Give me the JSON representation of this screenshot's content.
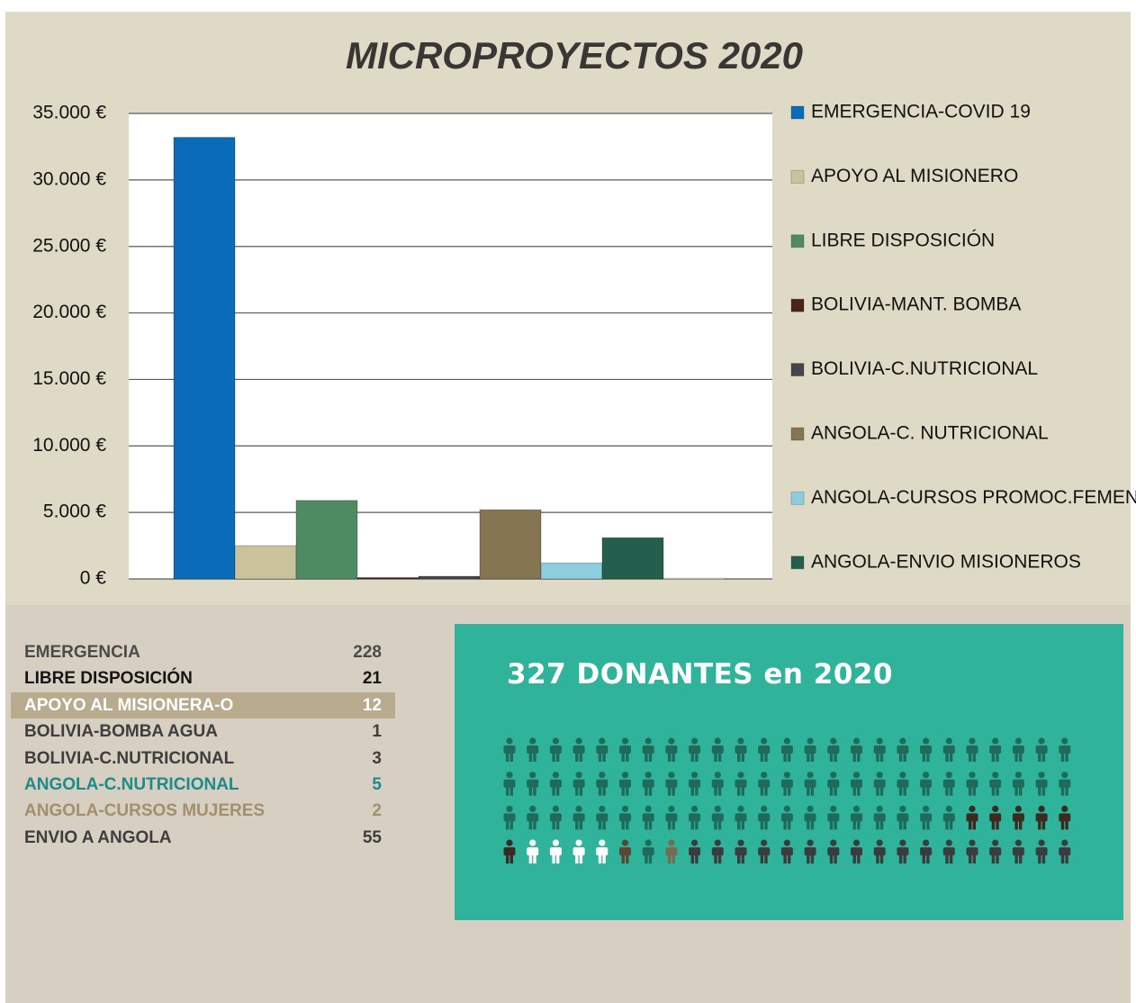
{
  "chart_data": {
    "type": "bar",
    "title": "MICROPROYECTOS 2020",
    "series": [
      {
        "name": "EMERGENCIA-COVID 19",
        "color": "#0a6bb8",
        "values": [
          33200
        ]
      },
      {
        "name": "APOYO AL MISIONERO",
        "color": "#c9c29a",
        "values": [
          2500
        ]
      },
      {
        "name": "LIBRE DISPOSICIÓN",
        "color": "#4e8a62",
        "values": [
          5900
        ]
      },
      {
        "name": "BOLIVIA-MANT. BOMBA",
        "color": "#4a2418",
        "values": [
          100
        ]
      },
      {
        "name": "BOLIVIA-C.NUTRICIONAL",
        "color": "#45454d",
        "values": [
          200
        ]
      },
      {
        "name": "ANGOLA-C. NUTRICIONAL",
        "color": "#857652",
        "values": [
          5200
        ]
      },
      {
        "name": "ANGOLA-CURSOS PROMOC.FEMENINA",
        "color": "#8ccde0",
        "values": [
          1200
        ]
      },
      {
        "name": "ANGOLA-ENVIO MISIONEROS",
        "color": "#245e4c",
        "values": [
          3100
        ]
      },
      {
        "name": null,
        "color": "#ffffff",
        "values": [
          50
        ]
      }
    ],
    "ylim": [
      0,
      35000
    ],
    "yticks": [
      {
        "value": 0,
        "label": "0 €"
      },
      {
        "value": 5000,
        "label": "5.000 €"
      },
      {
        "value": 10000,
        "label": "10.000 €"
      },
      {
        "value": 15000,
        "label": "15.000 €"
      },
      {
        "value": 20000,
        "label": "20.000 €"
      },
      {
        "value": 25000,
        "label": "25.000 €"
      },
      {
        "value": 30000,
        "label": "30.000 €"
      },
      {
        "value": 35000,
        "label": "35.000 €"
      }
    ],
    "grid": true,
    "legend": "right"
  },
  "table": {
    "rows": [
      [
        "EMERGENCIA",
        228
      ],
      [
        "LIBRE DISPOSICIÓN",
        21
      ],
      [
        "APOYO AL MISIONERA-O",
        12
      ],
      [
        "BOLIVIA-BOMBA AGUA",
        1
      ],
      [
        "BOLIVIA-C.NUTRICIONAL",
        3
      ],
      [
        "ANGOLA-C.NUTRICIONAL",
        5
      ],
      [
        "ANGOLA-CURSOS MUJERES",
        2
      ],
      [
        "ENVIO A ANGOLA",
        55
      ]
    ]
  },
  "infographic": {
    "title": "327 DONANTES en 2020"
  }
}
